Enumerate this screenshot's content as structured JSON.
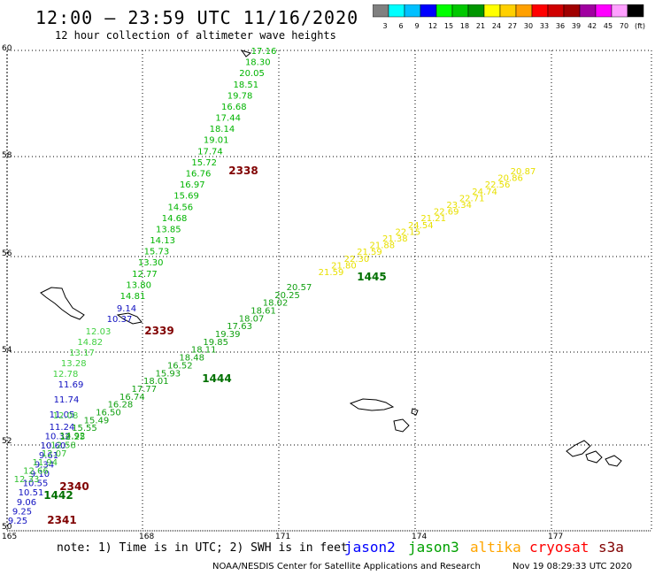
{
  "header": {
    "title": "12:00 – 23:59 UTC 11/16/2020",
    "subtitle": "12 hour collection of altimeter wave heights"
  },
  "legend": {
    "colors": [
      "#808080",
      "#00ffff",
      "#00c0ff",
      "#0000ff",
      "#00ff00",
      "#00c800",
      "#009600",
      "#ffff00",
      "#ffd000",
      "#ffa000",
      "#ff0000",
      "#d00000",
      "#a00000",
      "#a000a0",
      "#ff00ff",
      "#ffa0ff",
      "#000000"
    ],
    "labels": [
      "3",
      "6",
      "9",
      "12",
      "15",
      "18",
      "21",
      "24",
      "27",
      "30",
      "33",
      "36",
      "39",
      "42",
      "45",
      "70",
      "(ft)"
    ]
  },
  "axes": {
    "lat_labels": [
      "60",
      "58",
      "56",
      "54",
      "52",
      "50"
    ],
    "lon_labels": [
      "165",
      "168",
      "171",
      "174",
      "177"
    ]
  },
  "tracks": [
    {
      "id": "t1",
      "color": "#00b400",
      "values": [
        "17.16",
        "18.30",
        "20.05",
        "18.51",
        "19.78",
        "16.68",
        "17.44",
        "18.14",
        "19.01",
        "17.74",
        "15.72",
        "16.76",
        "16.97",
        "15.69",
        "14.56",
        "14.68",
        "13.85",
        "14.13",
        "15.73",
        "13.30",
        "12.77",
        "13.80",
        "14.81"
      ]
    },
    {
      "id": "t2",
      "color": "#1010c0",
      "values": [
        "9.14",
        "10.37"
      ]
    },
    {
      "id": "t3",
      "color": "#40d040",
      "values": [
        "12.03",
        "14.82",
        "13.17",
        "13.28",
        "12.78"
      ]
    },
    {
      "id": "t4",
      "color": "#1010c0",
      "values": [
        "11.69",
        "11.74",
        "11.05"
      ]
    },
    {
      "id": "t5",
      "color": "#40d040",
      "values": [
        "12.08"
      ]
    },
    {
      "id": "t6",
      "color": "#1010c0",
      "values": [
        "11.24",
        "10.32",
        "10.60",
        "9.61",
        "9.34",
        "9.10",
        "10.55",
        "10.51",
        "9.06",
        "9.25",
        "9.25"
      ]
    },
    {
      "id": "t7",
      "color": "#30c030",
      "values": [
        "12.33",
        "12.66",
        "11.94",
        "12.07",
        "12.58",
        "12.25"
      ]
    },
    {
      "id": "t8",
      "color": "#10a010",
      "values": [
        "14.92",
        "15.55",
        "15.49",
        "16.50",
        "16.28",
        "16.74",
        "17.77",
        "18.01",
        "15.93",
        "16.52",
        "18.48",
        "18.11",
        "19.85",
        "19.39",
        "17.63",
        "18.07",
        "18.61",
        "18.02",
        "20.25",
        "20.57"
      ]
    },
    {
      "id": "t9",
      "color": "#e8e000",
      "values": [
        "21.59",
        "21.80",
        "22.30",
        "21.59",
        "21.88",
        "21.38",
        "22.15",
        "24.54",
        "21.21",
        "22.69",
        "23.34",
        "22.71",
        "24.74",
        "22.56",
        "20.86",
        "20.87"
      ]
    }
  ],
  "time_labels": [
    {
      "text": "2338",
      "color": "#800000"
    },
    {
      "text": "2339",
      "color": "#800000"
    },
    {
      "text": "1444",
      "color": "#007000"
    },
    {
      "text": "1445",
      "color": "#007000"
    },
    {
      "text": "1442",
      "color": "#007000"
    },
    {
      "text": "2340",
      "color": "#800000"
    },
    {
      "text": "2341",
      "color": "#800000"
    }
  ],
  "footer": {
    "note": "note: 1) Time is in UTC; 2) SWH is in feet",
    "satellites": [
      {
        "name": "jason2",
        "color": "#0000ff"
      },
      {
        "name": "jason3",
        "color": "#00a000"
      },
      {
        "name": "altika",
        "color": "#ffa500"
      },
      {
        "name": "cryosat",
        "color": "#ff0000"
      },
      {
        "name": "s3a",
        "color": "#800000"
      }
    ],
    "credit": "NOAA/NESDIS Center for Satellite Applications and Research",
    "timestamp": "Nov 19 08:29:33 UTC 2020"
  }
}
